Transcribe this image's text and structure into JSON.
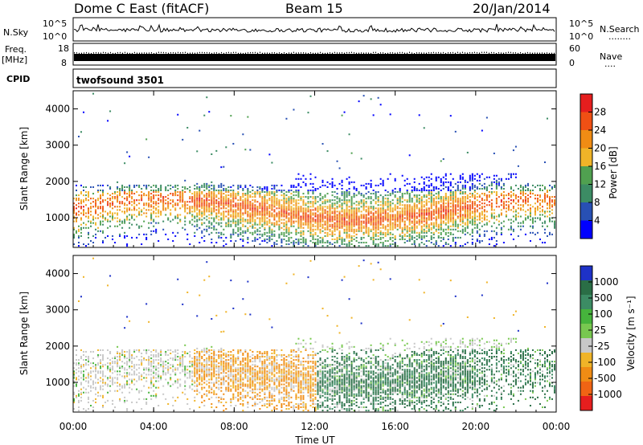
{
  "header": {
    "station": "Dome C East (fitACF)",
    "beam": "Beam 15",
    "date": "20/Jan/2014"
  },
  "top_panels": {
    "nsky_label": "N.Sky",
    "nsearch_label": "N.Search",
    "nsearch_dots": "........",
    "noise_tick_top": "10^5",
    "noise_tick_bottom": "10^0",
    "freq_label_line1": "Freq.",
    "freq_label_line2": "[MHz]",
    "freq_tick_top": "18",
    "freq_tick_bottom": "8",
    "nave_label": "Nave",
    "nave_dots": "....",
    "nave_tick_top": "60",
    "nave_tick_bottom": "0",
    "cpid_label": "CPID",
    "cpid_value": "twofsound 3501"
  },
  "colors": {
    "power_scale": [
      "#0000ff",
      "#2850b4",
      "#3c8c64",
      "#50a050",
      "#f0b428",
      "#f08c14",
      "#f05014",
      "#e61e1e"
    ],
    "velocity_scale": [
      "#1e32c8",
      "#2a6e46",
      "#3c8c64",
      "#46b43c",
      "#78c850",
      "#c8c8c8",
      "#f0b428",
      "#f08c14",
      "#f06414",
      "#e61e1e"
    ]
  },
  "chart_data": [
    {
      "type": "heatmap",
      "name": "power-panel",
      "xlabel": "Time UT",
      "ylabel": "Slant Range [km]",
      "x_ticks": [
        "00:00",
        "04:00",
        "08:00",
        "12:00",
        "16:00",
        "20:00",
        "00:00"
      ],
      "x_range_hours": [
        0,
        24
      ],
      "y_ticks": [
        1000,
        2000,
        3000,
        4000
      ],
      "y_range_km": [
        180,
        4500
      ],
      "colorbar_label": "Power [dB]",
      "colorbar_ticks": [
        "4",
        "8",
        "12",
        "16",
        "20",
        "24",
        "28"
      ],
      "colorbar_range": [
        0,
        32
      ]
    },
    {
      "type": "heatmap",
      "name": "velocity-panel",
      "xlabel": "Time UT",
      "ylabel": "Slant Range [km]",
      "x_ticks": [
        "00:00",
        "04:00",
        "08:00",
        "12:00",
        "16:00",
        "20:00",
        "00:00"
      ],
      "x_range_hours": [
        0,
        24
      ],
      "y_ticks": [
        1000,
        2000,
        3000,
        4000
      ],
      "y_range_km": [
        180,
        4500
      ],
      "colorbar_label": "Velocity [m s⁻¹]",
      "colorbar_ticks": [
        "1000",
        "500",
        "100",
        "25",
        "-25",
        "-100",
        "-500",
        "-1000"
      ],
      "colorbar_range": [
        -1000,
        1000
      ]
    }
  ]
}
